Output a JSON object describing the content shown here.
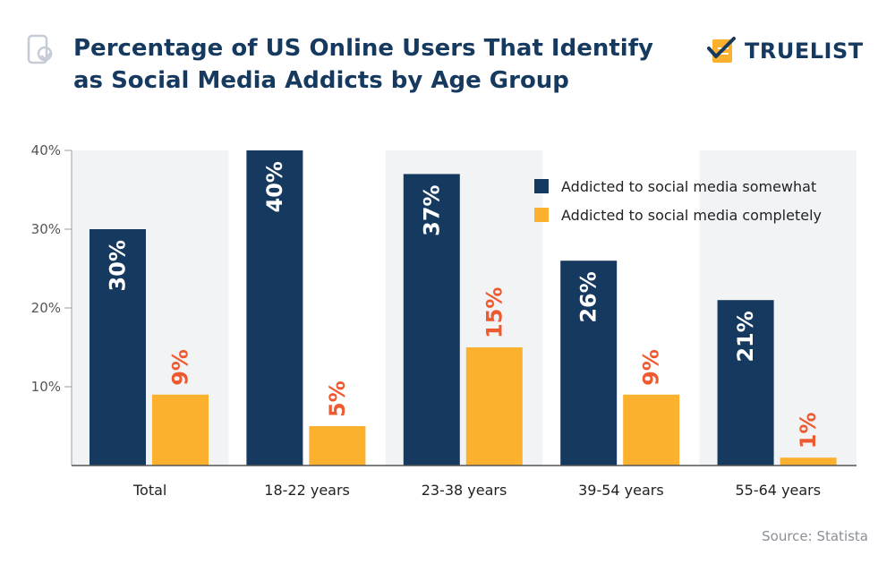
{
  "header": {
    "title": "Percentage of US Online Users That Identify as Social Media Addicts by Age Group",
    "brand": "TRUELIST"
  },
  "source": "Source: Statista",
  "colors": {
    "somewhat": "#163a5f",
    "completely": "#fbb12e",
    "label_completely": "#ee5a2f",
    "band": "#f1f3f5",
    "axis": "#555555"
  },
  "chart_data": {
    "type": "bar",
    "categories": [
      "Total",
      "18-22 years",
      "23-38 years",
      "39-54 years",
      "55-64 years"
    ],
    "series": [
      {
        "name": "Addicted to social media somewhat",
        "values": [
          30,
          40,
          37,
          26,
          21
        ]
      },
      {
        "name": "Addicted to social media completely",
        "values": [
          9,
          5,
          15,
          9,
          1
        ]
      }
    ],
    "data_labels": [
      [
        "30%",
        "40%",
        "37%",
        "26%",
        "21%"
      ],
      [
        "9%",
        "5%",
        "15%",
        "9%",
        "1%"
      ]
    ],
    "yticks": [
      "10%",
      "20%",
      "30%",
      "40%"
    ],
    "ytick_values": [
      10,
      20,
      30,
      40
    ],
    "ylim": [
      0,
      40
    ],
    "xlabel": "",
    "ylabel": "",
    "legend_position": "top-right",
    "grid": false
  }
}
